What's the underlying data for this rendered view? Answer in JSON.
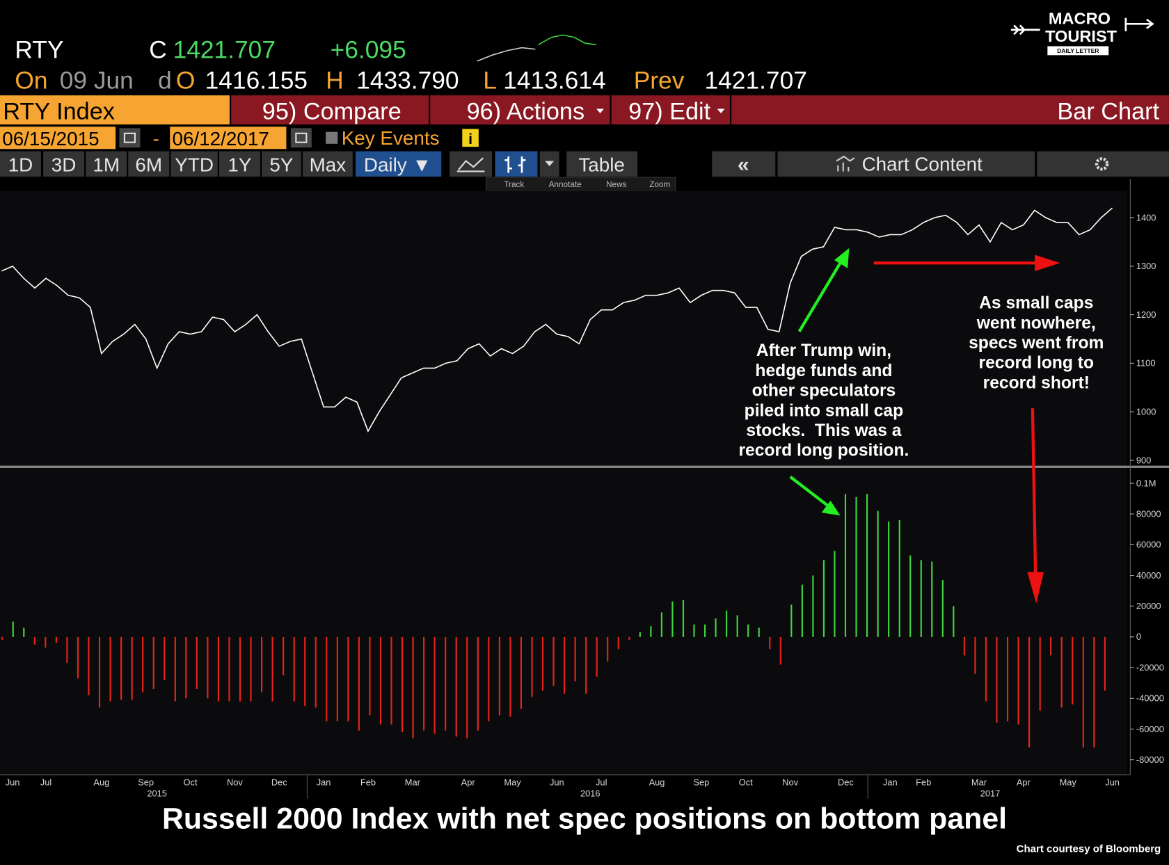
{
  "header": {
    "ticker": "RTY",
    "close_label": "C",
    "close": "1421.707",
    "change": "+6.095",
    "on_label": "On",
    "date": "09 Jun",
    "d_label": "d",
    "open_label": "O",
    "open": "1416.155",
    "high_label": "H",
    "high": "1433.790",
    "low_label": "L",
    "low": "1413.614",
    "prev_label": "Prev",
    "prev": "1421.707"
  },
  "logo": {
    "line1": "MACRO",
    "line2": "TOURIST",
    "tagline": "DAILY LETTER"
  },
  "toolbar": {
    "security": "RTY Index",
    "menu": [
      "95) Compare",
      "96) Actions",
      "97) Edit"
    ],
    "view": "Bar Chart",
    "start_date": "06/15/2015",
    "date_sep": "-",
    "end_date": "06/12/2017",
    "key_events": "Key Events",
    "info": "i",
    "periods": [
      "1D",
      "3D",
      "1M",
      "6M",
      "YTD",
      "1Y",
      "5Y",
      "Max"
    ],
    "frequency": "Daily ▼",
    "table": "Table",
    "collapse": "«",
    "chart_content": "Chart Content",
    "tools": [
      "Track",
      "Annotate",
      "News",
      "Zoom"
    ]
  },
  "chart_data": [
    {
      "type": "line",
      "color": "#ffffff",
      "ylim": [
        889,
        1480
      ],
      "yticks": [
        900,
        1000,
        1100,
        1200,
        1300,
        1400
      ],
      "categories": [
        null,
        "Jun",
        null,
        null,
        "Jul",
        null,
        null,
        null,
        null,
        "Aug",
        null,
        null,
        null,
        "Sep",
        null,
        null,
        null,
        "Oct",
        null,
        null,
        null,
        "Nov",
        null,
        null,
        null,
        "Dec",
        null,
        null,
        null,
        "Jan",
        null,
        null,
        null,
        "Feb",
        null,
        null,
        null,
        "Mar",
        null,
        null,
        null,
        null,
        "Apr",
        null,
        null,
        null,
        "May",
        null,
        null,
        null,
        "Jun",
        null,
        null,
        null,
        "Jul",
        null,
        null,
        null,
        null,
        "Aug",
        null,
        null,
        null,
        "Sep",
        null,
        null,
        null,
        "Oct",
        null,
        null,
        null,
        "Nov",
        null,
        null,
        null,
        null,
        "Dec",
        null,
        null,
        null,
        "Jan",
        null,
        null,
        "Feb",
        null,
        null,
        null,
        null,
        "Mar",
        null,
        null,
        null,
        "Apr",
        null,
        null,
        null,
        "May",
        null,
        null,
        null,
        "Jun"
      ],
      "year_labels": [
        null,
        null,
        null,
        null,
        null,
        null,
        null,
        null,
        null,
        null,
        null,
        null,
        null,
        null,
        "2015",
        null,
        null,
        null,
        null,
        null,
        null,
        null,
        null,
        null,
        null,
        null,
        null,
        null,
        null,
        null,
        null,
        null,
        null,
        null,
        null,
        null,
        null,
        null,
        null,
        null,
        null,
        null,
        null,
        null,
        null,
        null,
        null,
        null,
        null,
        null,
        null,
        null,
        null,
        "2016",
        null,
        null,
        null,
        null,
        null,
        null,
        null,
        null,
        null,
        null,
        null,
        null,
        null,
        null,
        null,
        null,
        null,
        null,
        null,
        null,
        null,
        null,
        null,
        null,
        null,
        null,
        null,
        null,
        null,
        null,
        null,
        null,
        null,
        null,
        null,
        "2017",
        null,
        null,
        null,
        null,
        null,
        null,
        null,
        null,
        null,
        null,
        null
      ],
      "values": [
        1290,
        1300,
        1275,
        1255,
        1275,
        1260,
        1240,
        1235,
        1215,
        1120,
        1145,
        1160,
        1180,
        1150,
        1090,
        1140,
        1165,
        1160,
        1165,
        1195,
        1190,
        1165,
        1180,
        1200,
        1165,
        1135,
        1145,
        1150,
        1080,
        1010,
        1010,
        1030,
        1020,
        960,
        1000,
        1035,
        1070,
        1080,
        1090,
        1090,
        1100,
        1105,
        1130,
        1140,
        1115,
        1130,
        1120,
        1135,
        1165,
        1180,
        1160,
        1155,
        1140,
        1190,
        1210,
        1210,
        1225,
        1230,
        1240,
        1240,
        1245,
        1255,
        1225,
        1240,
        1250,
        1250,
        1245,
        1215,
        1215,
        1170,
        1165,
        1265,
        1320,
        1335,
        1340,
        1380,
        1375,
        1375,
        1370,
        1360,
        1365,
        1365,
        1375,
        1390,
        1400,
        1405,
        1390,
        1365,
        1385,
        1350,
        1390,
        1375,
        1385,
        1415,
        1400,
        1390,
        1390,
        1365,
        1375,
        1400,
        1420
      ]
    },
    {
      "type": "bar",
      "positive_color": "#3ed63e",
      "negative_color": "#e8231a",
      "ylim": [
        -89800,
        110000
      ],
      "yticks": [
        {
          "value": 100000,
          "label": "0.1M"
        },
        80000,
        60000,
        40000,
        20000,
        0,
        -20000,
        -40000,
        -60000,
        -80000
      ],
      "values": [
        -2000,
        10000,
        6000,
        -5000,
        -7000,
        -4000,
        -17000,
        -27000,
        -38000,
        -46000,
        -42000,
        -41000,
        -41000,
        -36000,
        -34000,
        -28000,
        -42000,
        -40000,
        -34000,
        -40000,
        -42000,
        -42000,
        -42000,
        -42000,
        -36000,
        -42000,
        -25000,
        -42000,
        -45000,
        -46000,
        -55000,
        -55000,
        -55000,
        -61000,
        -51000,
        -57000,
        -57000,
        -62000,
        -66000,
        -61000,
        -63000,
        -61000,
        -65000,
        -66000,
        -61000,
        -55000,
        -51000,
        -52000,
        -47000,
        -39000,
        -35000,
        -32000,
        -37000,
        -29000,
        -37000,
        -26000,
        -16000,
        -8000,
        -2000,
        3000,
        7000,
        16000,
        23000,
        24000,
        8000,
        8000,
        12000,
        17000,
        14000,
        8000,
        6000,
        -8000,
        -18000,
        21000,
        34000,
        40000,
        50000,
        56000,
        93000,
        91000,
        93000,
        82000,
        75000,
        76000,
        53000,
        50000,
        49000,
        37000,
        20000,
        -12000,
        -24000,
        -42000,
        -56000,
        -55000,
        -57000,
        -72000,
        -48000,
        -12000,
        -46000,
        -44000,
        -72000,
        -72000,
        -35000
      ]
    }
  ],
  "annotations": [
    {
      "lines": [
        "After Trump win,",
        "hedge funds and",
        "other speculators",
        "piled into small cap",
        "stocks.  This was a",
        "record long position."
      ]
    },
    {
      "lines": [
        "As small caps",
        "went nowhere,",
        "specs went from",
        "record long to",
        "record short!"
      ]
    }
  ],
  "caption": "Russell 2000 Index with net spec positions on bottom panel",
  "credit": "Chart courtesy of Bloomberg"
}
